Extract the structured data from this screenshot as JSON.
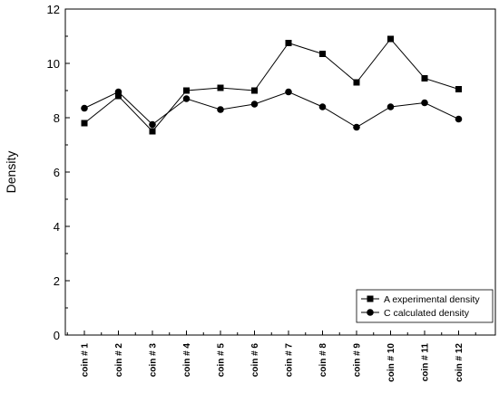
{
  "chart_data": {
    "type": "line",
    "categories": [
      "coin # 1",
      "coin # 2",
      "coin # 3",
      "coin # 4",
      "coin # 5",
      "coin # 6",
      "coin # 7",
      "coin # 8",
      "coin # 9",
      "coin # 10",
      "coin # 11",
      "coin # 12"
    ],
    "series": [
      {
        "name": "A experimental density",
        "marker": "square",
        "values": [
          7.8,
          8.8,
          7.5,
          9.0,
          9.1,
          9.0,
          10.75,
          10.35,
          9.3,
          10.9,
          9.45,
          9.05
        ]
      },
      {
        "name": "C calculated density",
        "marker": "circle",
        "values": [
          8.35,
          8.95,
          7.75,
          8.7,
          8.3,
          8.5,
          8.95,
          8.4,
          7.65,
          8.4,
          8.55,
          7.95
        ]
      }
    ],
    "xlabel": "",
    "ylabel": "Density",
    "ylim": [
      0,
      12
    ],
    "yticks": [
      "0",
      "2",
      "4",
      "6",
      "8",
      "10",
      "12"
    ],
    "grid": false,
    "legend_position": "bottom-right",
    "line_color": "#000000"
  }
}
